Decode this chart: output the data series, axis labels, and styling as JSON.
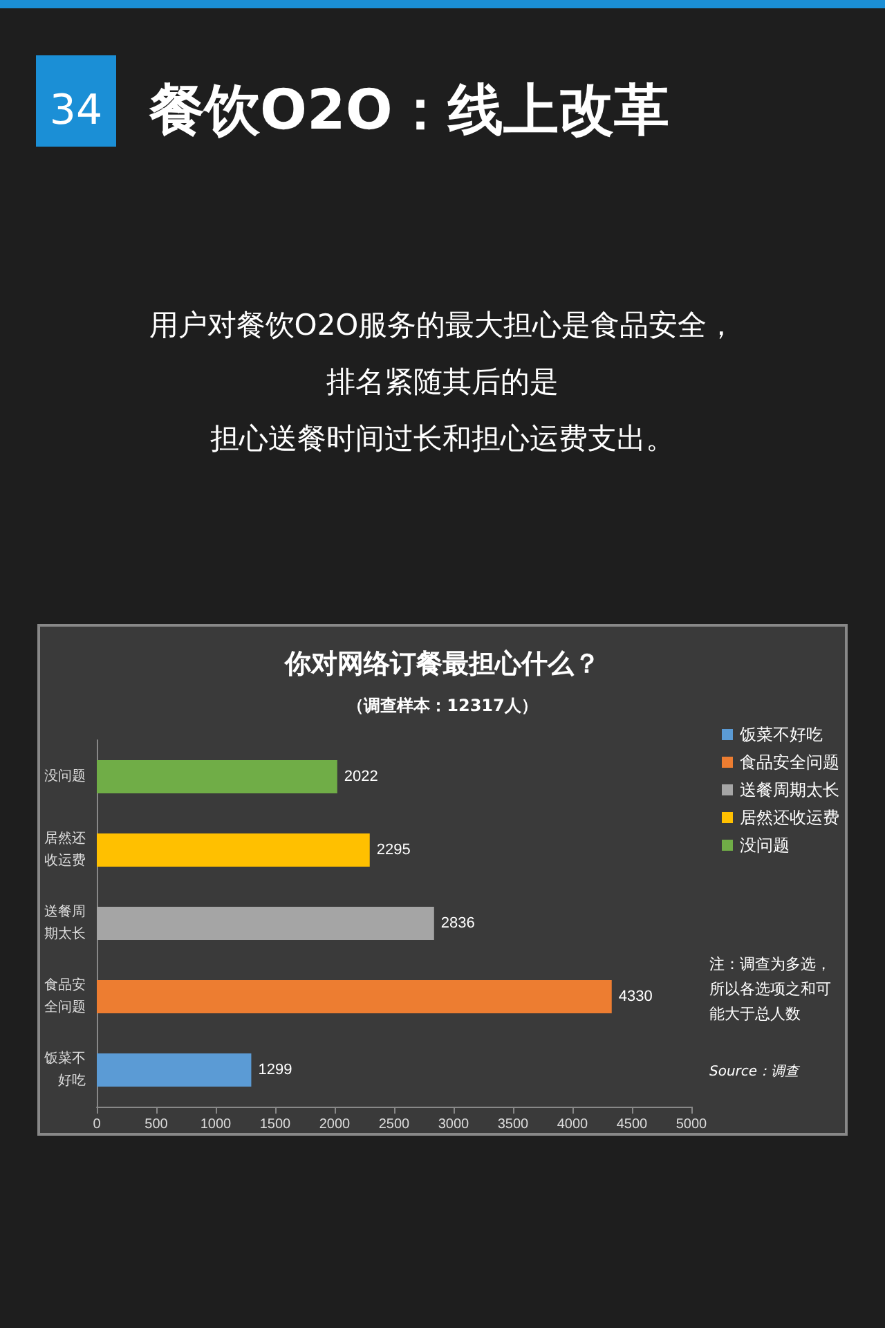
{
  "chart_data": {
    "type": "bar",
    "orientation": "horizontal",
    "stacked": true,
    "title": "你对网络订餐最担心什么？",
    "subtitle": "（调查样本：12317人）",
    "categories": [
      "没问题",
      "居然还收运费",
      "送餐周期太长",
      "食品安全问题",
      "饭菜不好吃"
    ],
    "series": [
      {
        "name": "饭菜不好吃",
        "color": "#5b9bd5",
        "values": [
          null,
          null,
          null,
          null,
          1299
        ]
      },
      {
        "name": "食品安全问题",
        "color": "#ed7d31",
        "values": [
          null,
          null,
          null,
          4330,
          null
        ]
      },
      {
        "name": "送餐周期太长",
        "color": "#a5a5a5",
        "values": [
          null,
          null,
          2836,
          null,
          null
        ]
      },
      {
        "name": "居然还收运费",
        "color": "#ffc000",
        "values": [
          null,
          2295,
          null,
          null,
          null
        ]
      },
      {
        "name": "没问题",
        "color": "#70ad47",
        "values": [
          2022,
          null,
          null,
          null,
          null
        ]
      }
    ],
    "xlim": [
      0,
      5000
    ],
    "xticks": [
      0,
      500,
      1000,
      1500,
      2000,
      2500,
      3000,
      3500,
      4000,
      4500,
      5000
    ],
    "data_labels": true,
    "legend": "right",
    "annotations": [
      "34",
      "餐饮O2O：线上改革",
      "用户对餐饮O2O服务的最大担心是食品安全，",
      "排名紧随其后的是",
      "担心送餐时间过长和担心运费支出。",
      "注：调查为多选，所以各选项之和可能大于总人数",
      "Source：调查"
    ]
  }
}
